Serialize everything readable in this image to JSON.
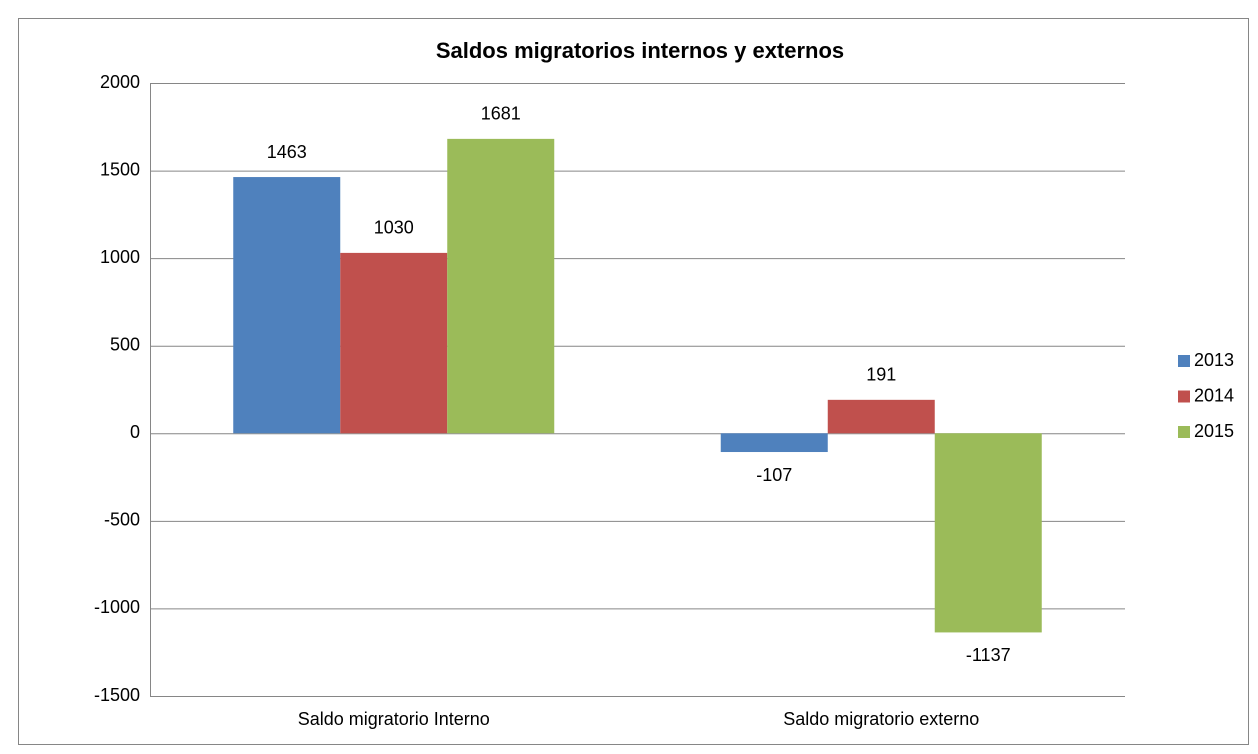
{
  "chart_data": {
    "type": "bar",
    "title": "Saldos migratorios internos y externos",
    "categories": [
      "Saldo migratorio Interno",
      "Saldo migratorio externo"
    ],
    "series": [
      {
        "name": "2013",
        "color": "#4f81bd",
        "values": [
          1463,
          -107
        ]
      },
      {
        "name": "2014",
        "color": "#c0504d",
        "values": [
          1030,
          191
        ]
      },
      {
        "name": "2015",
        "color": "#9bbb59",
        "values": [
          1681,
          -1137
        ]
      }
    ],
    "ylim": [
      -1500,
      2000
    ],
    "yticks": [
      -1500,
      -1000,
      -500,
      0,
      500,
      1000,
      1500,
      2000
    ],
    "grid": true,
    "legend": "right"
  }
}
